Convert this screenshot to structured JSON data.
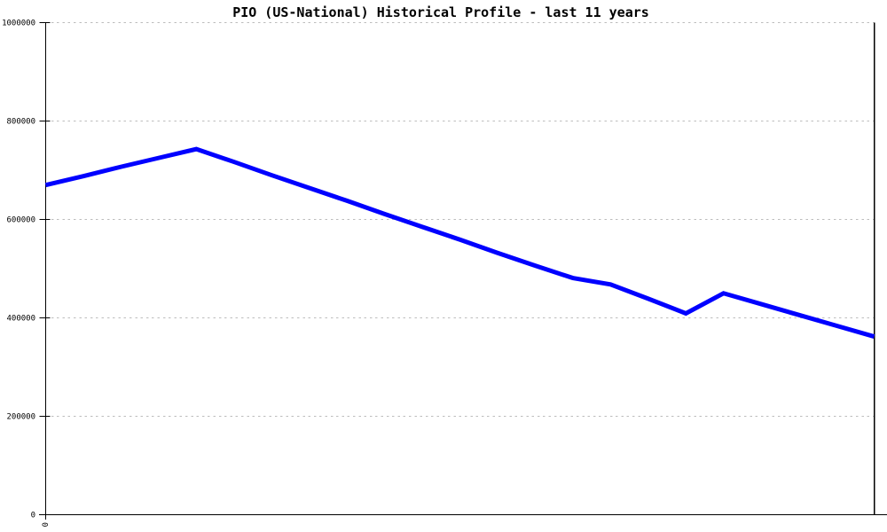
{
  "chart_data": {
    "type": "line",
    "title": "PIO (US-National) Historical Profile - last 11 years",
    "x": [
      0,
      1,
      2,
      3,
      4,
      5,
      6,
      7,
      8,
      9,
      10,
      11,
      12,
      13,
      14,
      15,
      16,
      17,
      18,
      19,
      20,
      21,
      22
    ],
    "values": [
      670000,
      688000,
      707000,
      725000,
      743000,
      717000,
      690000,
      664000,
      638000,
      611000,
      585000,
      559000,
      532000,
      506000,
      481000,
      468000,
      439000,
      409000,
      450000,
      428000,
      406000,
      384000,
      362000
    ],
    "xlabel": "",
    "ylabel": "",
    "xlim": [
      0,
      22
    ],
    "ylim": [
      0,
      1000000
    ],
    "yticks": [
      0,
      200000,
      400000,
      600000,
      800000,
      1000000
    ],
    "ytick_labels": [
      "0",
      "200000",
      "400000",
      "600000",
      "800000",
      "1000000"
    ],
    "xticks": [
      0
    ],
    "xtick_labels": [
      "0"
    ],
    "grid": "horizontal dashed",
    "legend": "none"
  },
  "colors": {
    "line": "#0000ff",
    "grid": "#bdbdbd",
    "axis": "#000000",
    "text": "#000000",
    "background": "#ffffff"
  }
}
